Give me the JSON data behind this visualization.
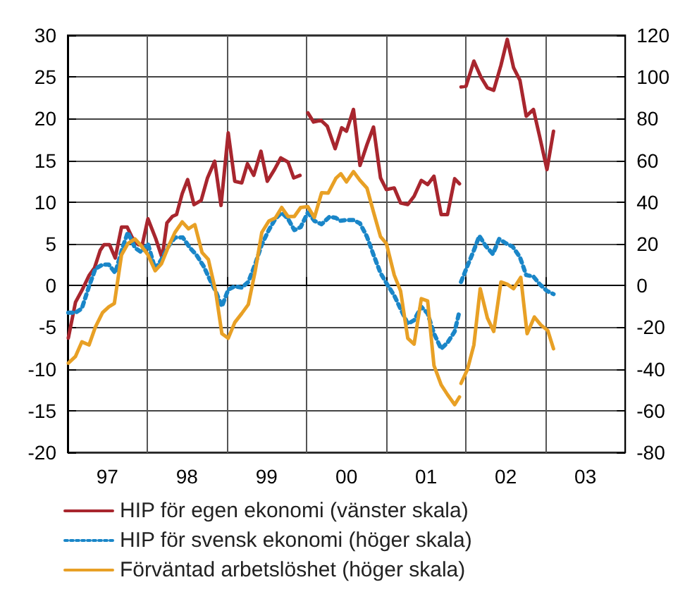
{
  "chart_data": {
    "type": "line",
    "xlim": [
      "1997-01-01",
      "2004-01-01"
    ],
    "xticks": [
      {
        "value": "1997-01-01",
        "label": null
      },
      {
        "value": "1997-07-02",
        "label": "97"
      },
      {
        "value": "1998-01-01",
        "label": null
      },
      {
        "value": "1998-07-02",
        "label": "98"
      },
      {
        "value": "1999-01-01",
        "label": null
      },
      {
        "value": "1999-07-02",
        "label": "99"
      },
      {
        "value": "2000-01-01",
        "label": null
      },
      {
        "value": "2000-07-02",
        "label": "00"
      },
      {
        "value": "2001-01-01",
        "label": null
      },
      {
        "value": "2001-07-02",
        "label": "01"
      },
      {
        "value": "2002-01-01",
        "label": null
      },
      {
        "value": "2002-07-02",
        "label": "02"
      },
      {
        "value": "2003-01-01",
        "label": null
      },
      {
        "value": "2003-07-02",
        "label": "03"
      },
      {
        "value": "2004-01-01",
        "label": null
      }
    ],
    "ylim": [
      -20,
      30
    ],
    "yticks": [
      -20,
      -15,
      -10,
      -5,
      0,
      5,
      10,
      15,
      20,
      25,
      30
    ],
    "y2lim": [
      -80,
      120
    ],
    "y2ticks": [
      -80,
      -60,
      -40,
      -20,
      0,
      20,
      40,
      60,
      80,
      100,
      120
    ],
    "grid": true,
    "legend": "bottom",
    "marker": "none",
    "series": [
      {
        "name": "HIP för egen ekonomi (vänster skala)",
        "color": "#a8262e",
        "line_style": "solid",
        "axis": "y",
        "x": [
          "1997-01-04",
          "1997-02-06",
          "1997-03-07",
          "1997-04-09",
          "1997-05-04",
          "1997-05-30",
          "1997-06-17",
          "1997-07-12",
          "1997-08-07",
          "1997-09-05",
          "1997-10-01",
          "1997-10-23",
          "1997-11-21",
          "1997-12-09",
          "1998-01-04",
          "1998-02-09",
          "1998-03-10",
          "1998-04-01",
          "1998-04-27",
          "1998-05-15",
          "1998-06-10",
          "1998-07-05",
          "1998-08-03",
          "1998-09-05",
          "1998-10-04",
          "1998-11-06",
          "1998-12-05",
          "1999-01-07",
          "1999-02-06",
          "1999-03-10",
          "1999-04-05",
          "1999-05-04",
          "1999-06-06",
          "1999-07-05",
          "1999-08-07",
          "1999-09-05",
          "1999-10-08",
          "1999-11-03",
          "1999-12-02",
          "1999-12-20",
          "2000-01-07",
          "2000-02-02",
          "2000-03-07",
          "2000-04-05",
          "2000-05-11",
          "2000-06-10",
          "2000-07-02",
          "2000-08-03",
          "2000-09-02",
          "2000-10-04",
          "2000-11-03",
          "2000-12-05",
          "2001-01-01",
          "2001-02-06",
          "2001-03-07",
          "2001-04-09",
          "2001-05-08",
          "2001-06-10",
          "2001-07-09",
          "2001-08-07",
          "2001-09-09",
          "2001-10-08",
          "2001-11-10",
          "2001-12-02",
          "2001-12-05",
          "2001-12-09",
          "2002-01-01",
          "2002-02-06",
          "2002-03-10",
          "2002-04-09",
          "2002-05-08",
          "2002-06-10",
          "2002-07-09",
          "2002-08-07",
          "2002-09-05",
          "2002-10-04",
          "2002-11-06",
          "2002-12-05",
          "2003-01-07",
          "2003-02-06"
        ],
        "values": [
          -6.3,
          -2,
          -0.6,
          1.2,
          2.1,
          4.2,
          4.9,
          4.9,
          3.3,
          7,
          7,
          5.8,
          4.9,
          4.9,
          8,
          5.6,
          3.3,
          7.5,
          8.3,
          8.5,
          11,
          12.7,
          9.7,
          10.2,
          12.9,
          14.9,
          9.6,
          18.3,
          12.5,
          12.3,
          14.6,
          13.2,
          16.1,
          12.5,
          13.9,
          15.3,
          14.8,
          12.9,
          13.2,
          null,
          20.7,
          19.6,
          19.8,
          19.1,
          16.4,
          18.9,
          18.5,
          21.1,
          14.4,
          16.9,
          19,
          12.9,
          11.5,
          11.7,
          9.9,
          9.7,
          10.7,
          12.6,
          12.1,
          13.1,
          8.5,
          8.5,
          12.8,
          12.2,
          null,
          23.8,
          23.9,
          26.9,
          25,
          23.7,
          23.4,
          26.4,
          29.5,
          26.1,
          24.6,
          20.3,
          21.1,
          17.8,
          13.9,
          18.5
        ]
      },
      {
        "name": "HIP för svensk ekonomi (höger skala)",
        "color": "#1a86c8",
        "line_style": "dotted",
        "axis": "y2",
        "x": [
          "1997-01-04",
          "1997-02-06",
          "1997-03-07",
          "1997-04-09",
          "1997-05-08",
          "1997-06-10",
          "1997-07-09",
          "1997-08-07",
          "1997-09-09",
          "1997-10-04",
          "1997-11-06",
          "1997-12-05",
          "1998-01-04",
          "1998-02-06",
          "1998-03-07",
          "1998-04-09",
          "1998-05-08",
          "1998-06-13",
          "1998-07-16",
          "1998-08-14",
          "1998-09-16",
          "1998-10-15",
          "1998-11-10",
          "1998-12-09",
          "1999-01-07",
          "1999-02-06",
          "1999-03-10",
          "1999-04-09",
          "1999-05-11",
          "1999-06-10",
          "1999-07-12",
          "1999-08-11",
          "1999-09-09",
          "1999-10-08",
          "1999-11-06",
          "1999-12-05",
          "2000-01-07",
          "2000-02-06",
          "2000-03-10",
          "2000-04-16",
          "2000-05-15",
          "2000-06-02",
          "2000-07-02",
          "2000-08-03",
          "2000-09-02",
          "2000-10-04",
          "2000-11-03",
          "2000-12-05",
          "2001-01-04",
          "2001-02-06",
          "2001-03-07",
          "2001-04-09",
          "2001-05-08",
          "2001-06-10",
          "2001-07-09",
          "2001-08-07",
          "2001-09-09",
          "2001-10-08",
          "2001-11-10",
          "2001-12-02",
          "2001-12-05",
          "2001-12-09",
          "2002-01-07",
          "2002-02-06",
          "2002-03-03",
          "2002-04-01",
          "2002-05-04",
          "2002-06-02",
          "2002-07-05",
          "2002-08-03",
          "2002-09-05",
          "2002-10-04",
          "2002-11-06",
          "2002-12-05",
          "2003-01-07",
          "2003-02-06"
        ],
        "values": [
          -13,
          -13,
          -11,
          -0.4,
          8,
          10,
          10,
          6,
          18,
          25.5,
          18,
          16,
          20,
          8,
          12.5,
          19,
          23,
          23,
          18,
          14.7,
          9.3,
          2.8,
          -2.6,
          -10,
          -2,
          -0.4,
          -1,
          1.7,
          10.4,
          19.7,
          26.6,
          32,
          35,
          32,
          26.6,
          28,
          35,
          31,
          29.4,
          33,
          32.4,
          31,
          31.4,
          31.4,
          29.8,
          23.4,
          14.7,
          6,
          0.6,
          -4.8,
          -11.2,
          -18.4,
          -16.6,
          -10.2,
          -13.4,
          -23,
          -30.3,
          -27.4,
          -22,
          -12.3,
          null,
          1.7,
          9.3,
          16.9,
          23.8,
          19,
          15.1,
          22.3,
          20.1,
          18.6,
          13.6,
          5,
          4.3,
          0.6,
          -2.6,
          -4.1
        ]
      },
      {
        "name": "Förväntad arbetslöshet (höger skala)",
        "color": "#e8a025",
        "line_style": "solid",
        "axis": "y2",
        "x": [
          "1997-01-04",
          "1997-02-06",
          "1997-03-07",
          "1997-04-09",
          "1997-05-08",
          "1997-06-10",
          "1997-07-09",
          "1997-08-03",
          "1997-09-05",
          "1997-10-04",
          "1997-11-06",
          "1997-12-05",
          "1998-01-04",
          "1998-02-06",
          "1998-03-07",
          "1998-04-09",
          "1998-05-08",
          "1998-06-10",
          "1998-07-09",
          "1998-08-07",
          "1998-09-09",
          "1998-10-08",
          "1998-11-10",
          "1998-12-09",
          "1999-01-07",
          "1999-02-06",
          "1999-03-10",
          "1999-04-09",
          "1999-05-11",
          "1999-06-10",
          "1999-07-12",
          "1999-08-11",
          "1999-09-09",
          "1999-10-08",
          "1999-11-06",
          "1999-12-05",
          "2000-01-07",
          "2000-02-06",
          "2000-03-10",
          "2000-04-09",
          "2000-05-15",
          "2000-06-06",
          "2000-07-02",
          "2000-08-03",
          "2000-09-02",
          "2000-10-04",
          "2000-11-03",
          "2000-12-05",
          "2001-01-01",
          "2001-02-06",
          "2001-03-07",
          "2001-04-09",
          "2001-05-08",
          "2001-06-10",
          "2001-07-09",
          "2001-08-07",
          "2001-09-09",
          "2001-10-08",
          "2001-11-10",
          "2001-12-02",
          "2001-12-05",
          "2001-12-09",
          "2002-01-07",
          "2002-02-06",
          "2002-03-07",
          "2002-04-09",
          "2002-05-08",
          "2002-06-10",
          "2002-07-09",
          "2002-08-07",
          "2002-09-09",
          "2002-10-08",
          "2002-11-10",
          "2002-12-09",
          "2003-01-11",
          "2003-02-06"
        ],
        "values": [
          -37.2,
          -34,
          -27,
          -28.5,
          -19.9,
          -13,
          -10.2,
          -8.6,
          14.7,
          20.1,
          22.3,
          19,
          14.7,
          7.1,
          10.4,
          19,
          25.5,
          30.5,
          27.2,
          29.2,
          15.8,
          12.5,
          -2.6,
          -23.1,
          -25.3,
          -17.7,
          -13.4,
          -9.1,
          7.1,
          25.5,
          30.9,
          32.4,
          37.4,
          33.1,
          33.1,
          37.4,
          37.8,
          32.6,
          44.5,
          44.3,
          51.5,
          53.6,
          49.7,
          54.6,
          50.4,
          46.7,
          35.2,
          23.4,
          20.1,
          5,
          -2.6,
          -25.3,
          -28.1,
          -6.3,
          -7.4,
          -38.3,
          -47.6,
          -52.3,
          -57.1,
          -53.4,
          null,
          -46.9,
          -40.4,
          -28.5,
          -1.5,
          -15.6,
          -22,
          1.7,
          0.6,
          -1.5,
          3.9,
          -23.1,
          -15.1,
          -18.8,
          -21.6,
          -30.3
        ]
      }
    ]
  }
}
